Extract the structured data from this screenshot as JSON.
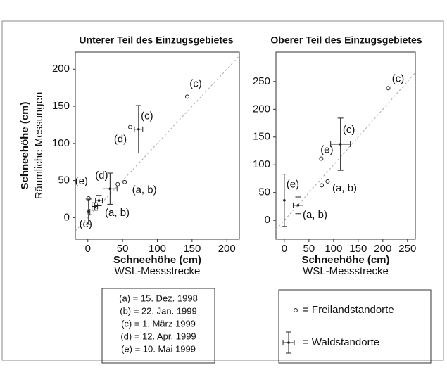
{
  "chart_data": [
    {
      "type": "scatter",
      "title": "Unterer Teil des Einzugsgebietes",
      "ylabel": "Schneehöhe (cm)",
      "ylabel_sub": "Räumliche Messungen",
      "xlabel": "Schneehöhe (cm)",
      "xlabel_sub": "WSL-Messstrecke",
      "xlim": [
        -18,
        218
      ],
      "ylim": [
        -29,
        223
      ],
      "xticks": [
        0,
        50,
        100,
        150,
        200
      ],
      "yticks": [
        0,
        50,
        100,
        150,
        200
      ],
      "series": [
        {
          "name": "Freilandstandorte",
          "marker": "circle",
          "x": [
            143,
            61,
            53,
            43,
            1
          ],
          "values": [
            163,
            122,
            48,
            45,
            26
          ],
          "labels": [
            "(c)",
            "(d)",
            "(a, b)",
            null,
            "(e)"
          ]
        },
        {
          "name": "Waldstandorte",
          "marker": "errorbar",
          "x": [
            73,
            32,
            16,
            10,
            1
          ],
          "values": [
            119,
            39,
            23,
            15,
            8
          ],
          "xerr": [
            6,
            10,
            5,
            4,
            2
          ],
          "yerr": [
            32,
            21,
            7,
            5,
            17
          ],
          "labels": [
            "(c)",
            "(d)",
            "(a, b)",
            null,
            "(e)"
          ]
        }
      ],
      "legend_lines": [
        "(a) = 15. Dez. 1998",
        "(b) = 22. Jan. 1999",
        "(c) = 1. März 1999",
        "(d) = 12. Apr. 1999",
        "(e) = 10. Mai 1999"
      ]
    },
    {
      "type": "scatter",
      "title": "Oberer Teil des Einzugsgebietes",
      "xlabel": "Schneehöhe (cm)",
      "xlabel_sub": "WSL-Messstrecke",
      "xlim": [
        -17,
        266
      ],
      "ylim": [
        -34,
        303
      ],
      "xticks": [
        0,
        50,
        100,
        150,
        200,
        250
      ],
      "yticks": [
        0,
        50,
        100,
        150,
        200,
        250
      ],
      "series": [
        {
          "name": "= Freilandstandorte",
          "marker": "circle",
          "x": [
            211,
            75,
            88,
            76
          ],
          "values": [
            238,
            111,
            70,
            63
          ],
          "labels": [
            "(c)",
            "(e)",
            "(a, b)",
            null
          ]
        },
        {
          "name": "= Waldstandorte",
          "marker": "errorbar",
          "x": [
            114,
            0,
            28
          ],
          "values": [
            137,
            36,
            27
          ],
          "xerr": [
            20,
            null,
            10
          ],
          "yerr": [
            47,
            47,
            15
          ],
          "labels": [
            "(c)",
            "(e)",
            "(a, b)"
          ]
        }
      ]
    }
  ]
}
